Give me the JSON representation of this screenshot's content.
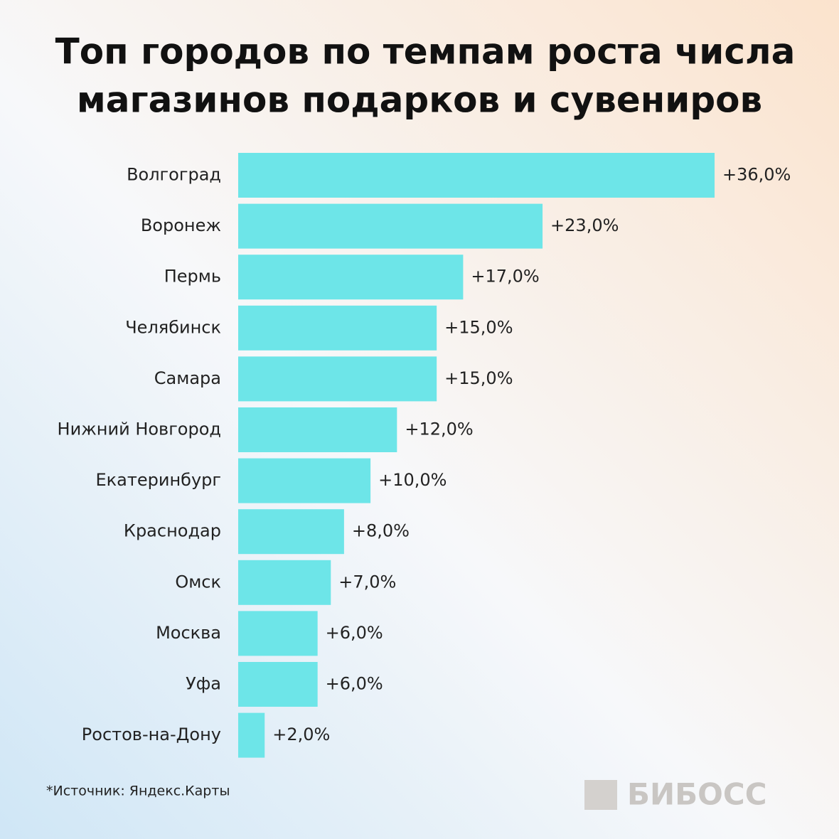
{
  "chart_data": {
    "type": "hbar",
    "title": [
      "Топ городов по темпам роста числа",
      "магазинов подарков и сувениров"
    ],
    "categories": [
      "Волгоград",
      "Воронеж",
      "Пермь",
      "Челябинск",
      "Самара",
      "Нижний Новгород",
      "Екатеринбург",
      "Краснодар",
      "Омск",
      "Москва",
      "Уфа",
      "Ростов-на-Дону"
    ],
    "values": [
      36,
      23,
      17,
      15,
      15,
      12,
      10,
      8,
      7,
      6,
      6,
      2
    ],
    "value_labels": [
      "+36,0%",
      "+23,0%",
      "+17,0%",
      "+15,0%",
      "+15,0%",
      "+12,0%",
      "+10,0%",
      "+8,0%",
      "+7,0%",
      "+6,0%",
      "+6,0%",
      "+2,0%"
    ],
    "color": "#6de5e8",
    "note": "*Источник: Яндекс.Карты"
  },
  "logo": "БИБОСС"
}
